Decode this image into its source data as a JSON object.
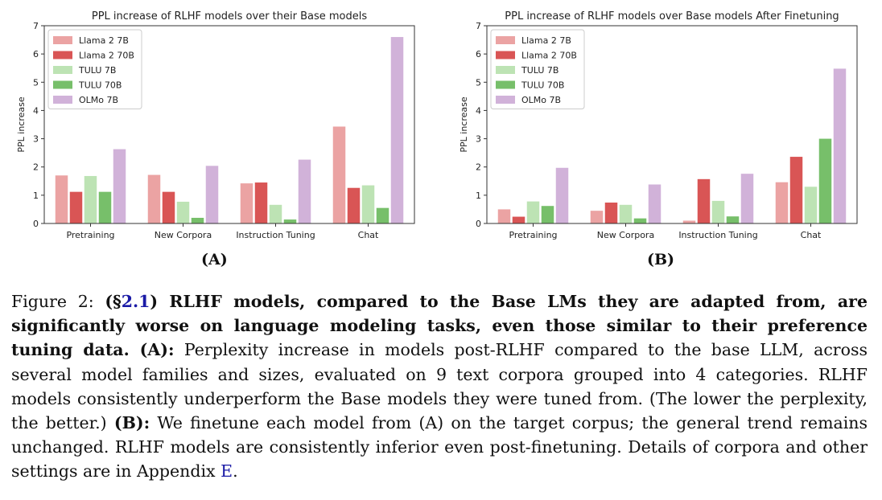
{
  "chart_data": [
    {
      "type": "bar",
      "title": "PPL increase of RLHF models over their Base models",
      "xlabel": "",
      "ylabel": "PPL increase",
      "ylim": [
        0,
        7
      ],
      "yticks": [
        "0",
        "1",
        "2",
        "3",
        "4",
        "5",
        "6",
        "7"
      ],
      "categories": [
        "Pretraining",
        "New Corpora",
        "Instruction Tuning",
        "Chat"
      ],
      "legend_position": "top-left",
      "series": [
        {
          "name": "Llama 2 7B",
          "color": "#eba3a3",
          "values": [
            1.7,
            1.72,
            1.42,
            3.43
          ]
        },
        {
          "name": "Llama 2 70B",
          "color": "#d95555",
          "values": [
            1.12,
            1.12,
            1.45,
            1.26
          ]
        },
        {
          "name": "TULU 7B",
          "color": "#bde3b4",
          "values": [
            1.68,
            0.77,
            0.66,
            1.35
          ]
        },
        {
          "name": "TULU 70B",
          "color": "#77bf6a",
          "values": [
            1.12,
            0.2,
            0.14,
            0.55
          ]
        },
        {
          "name": "OLMo 7B",
          "color": "#d1b2d9",
          "values": [
            2.63,
            2.04,
            2.26,
            6.6
          ]
        }
      ]
    },
    {
      "type": "bar",
      "title": "PPL increase of RLHF models over Base models After Finetuning",
      "xlabel": "",
      "ylabel": "PPL increase",
      "ylim": [
        0,
        7
      ],
      "yticks": [
        "0",
        "1",
        "2",
        "3",
        "4",
        "5",
        "6",
        "7"
      ],
      "categories": [
        "Pretraining",
        "New Corpora",
        "Instruction Tuning",
        "Chat"
      ],
      "legend_position": "top-left",
      "series": [
        {
          "name": "Llama 2 7B",
          "color": "#eba3a3",
          "values": [
            0.5,
            0.45,
            0.1,
            1.46
          ]
        },
        {
          "name": "Llama 2 70B",
          "color": "#d95555",
          "values": [
            0.24,
            0.74,
            1.57,
            2.36
          ]
        },
        {
          "name": "TULU 7B",
          "color": "#bde3b4",
          "values": [
            0.78,
            0.66,
            0.8,
            1.3
          ]
        },
        {
          "name": "TULU 70B",
          "color": "#77bf6a",
          "values": [
            0.62,
            0.18,
            0.25,
            3.0
          ]
        },
        {
          "name": "OLMo 7B",
          "color": "#d1b2d9",
          "values": [
            1.97,
            1.38,
            1.76,
            5.48
          ]
        }
      ]
    }
  ],
  "panels": {
    "a": "(A)",
    "b": "(B)"
  },
  "caption": {
    "fig_prefix": "Figure 2: ",
    "bold_open": "(§",
    "section_ref": "2.1",
    "bold_main": ") RLHF models, compared to the Base LMs they are adapted from, are significantly worse on language modeling tasks, even those similar to their preference tuning data. ",
    "a_label": "(A):",
    "a_text": " Perplexity increase in models post-RLHF compared to the base LLM, across several model families and sizes, evaluated on 9 text corpora grouped into 4 categories. RLHF models consistently underperform the Base models they were tuned from. (The lower the perplexity, the better.) ",
    "b_label": "(B):",
    "b_text": " We finetune each model from (A) on the target corpus; the general trend remains unchanged. RLHF models are consistently inferior even post-finetuning. Details of corpora and other settings are in Appendix ",
    "appendix_ref": "E",
    "end": "."
  }
}
